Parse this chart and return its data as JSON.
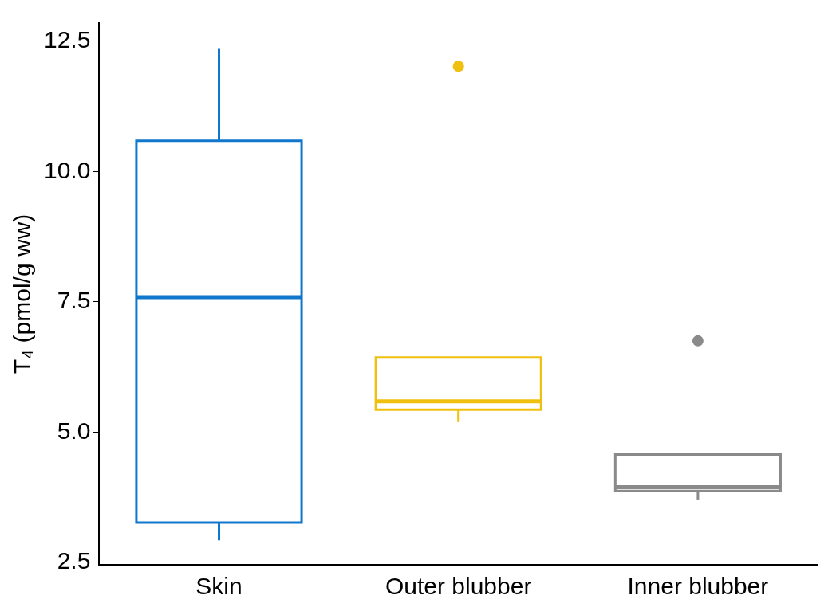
{
  "chart_data": {
    "type": "box",
    "ylabel": "T₄ (pmol/g ww)",
    "categories": [
      "Skin",
      "Outer blubber",
      "Inner blubber"
    ],
    "colors": [
      "#1077cc",
      "#f0c010",
      "#8a8a8a"
    ],
    "boxes": [
      {
        "low": 2.92,
        "q1": 3.26,
        "median": 7.59,
        "q3": 10.59,
        "high": 12.37
      },
      {
        "low": 5.19,
        "q1": 5.43,
        "median": 5.59,
        "q3": 6.43,
        "high": 6.43,
        "outliers": [
          12.02
        ]
      },
      {
        "low": 3.69,
        "q1": 3.87,
        "median": 3.94,
        "q3": 4.57,
        "high": 4.57,
        "outliers": [
          6.75
        ]
      }
    ],
    "ylim": [
      2.45,
      12.85
    ],
    "yticks": [
      {
        "value": 2.5,
        "label": "2.5"
      },
      {
        "value": 5,
        "label": "5.0"
      },
      {
        "value": 7.5,
        "label": "7.5"
      },
      {
        "value": 10,
        "label": "10.0"
      },
      {
        "value": 12.5,
        "label": "12.5"
      }
    ],
    "grid": false
  }
}
